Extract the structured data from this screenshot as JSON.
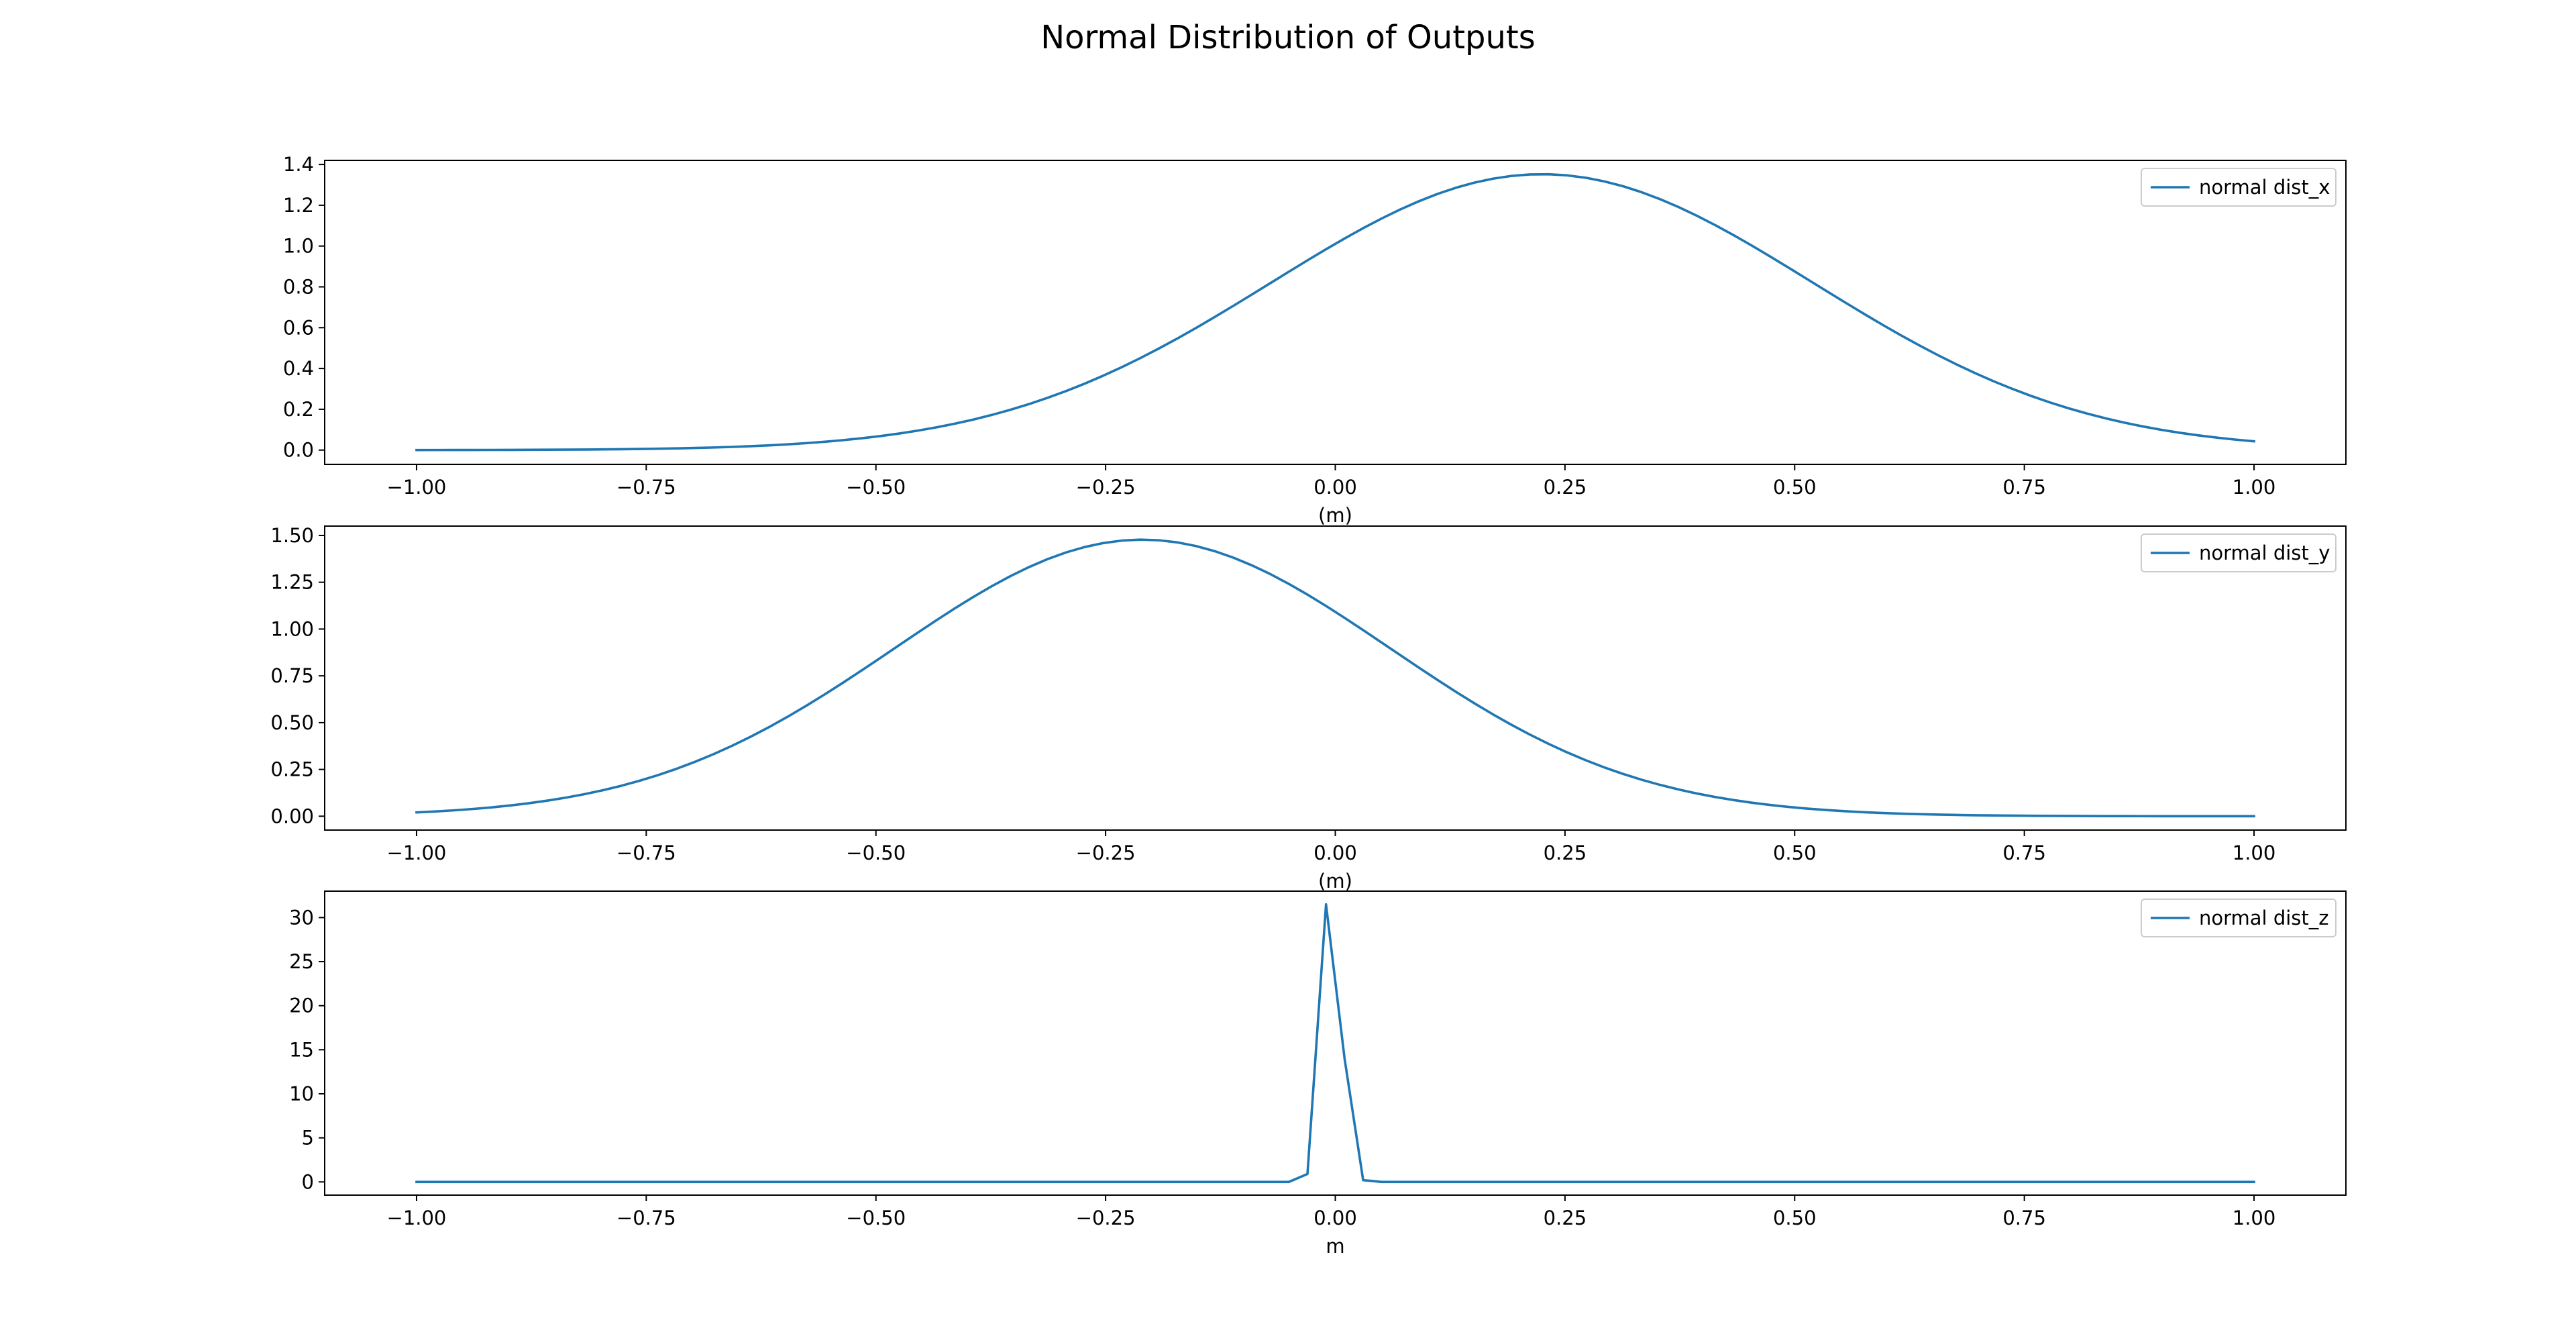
{
  "figure": {
    "title": "Normal Distribution of Outputs"
  },
  "colors": {
    "series": "#1f77b4",
    "axes": "#000000",
    "legend_border": "#cccccc"
  },
  "chart_data": [
    {
      "type": "line",
      "xlabel": "(m)",
      "ylabel": "",
      "xlim": [
        -1.1,
        1.1
      ],
      "ylim": [
        -0.07,
        1.42
      ],
      "xticks": [
        -1.0,
        -0.75,
        -0.5,
        -0.25,
        0.0,
        0.25,
        0.5,
        0.75,
        1.0
      ],
      "xtick_labels": [
        "−1.00",
        "−0.75",
        "−0.50",
        "−0.25",
        "0.00",
        "0.25",
        "0.50",
        "0.75",
        "1.00"
      ],
      "yticks": [
        0.0,
        0.2,
        0.4,
        0.6,
        0.8,
        1.0,
        1.2,
        1.4
      ],
      "ytick_labels": [
        "0.0",
        "0.2",
        "0.4",
        "0.6",
        "0.8",
        "1.0",
        "1.2",
        "1.4"
      ],
      "legend": "top-right",
      "grid": false,
      "series": [
        {
          "name": "normal dist_x",
          "distribution": "normal",
          "mean": 0.225,
          "std": 0.295,
          "x_start": -1.0,
          "x_end": 1.0,
          "points": 100
        }
      ]
    },
    {
      "type": "line",
      "xlabel": "(m)",
      "ylabel": "",
      "xlim": [
        -1.1,
        1.1
      ],
      "ylim": [
        -0.074,
        1.55
      ],
      "xticks": [
        -1.0,
        -0.75,
        -0.5,
        -0.25,
        0.0,
        0.25,
        0.5,
        0.75,
        1.0
      ],
      "xtick_labels": [
        "−1.00",
        "−0.75",
        "−0.50",
        "−0.25",
        "0.00",
        "0.25",
        "0.50",
        "0.75",
        "1.00"
      ],
      "yticks": [
        0.0,
        0.25,
        0.5,
        0.75,
        1.0,
        1.25,
        1.5
      ],
      "ytick_labels": [
        "0.00",
        "0.25",
        "0.50",
        "0.75",
        "1.00",
        "1.25",
        "1.50"
      ],
      "legend": "top-right",
      "grid": false,
      "series": [
        {
          "name": "normal dist_y",
          "distribution": "normal",
          "mean": -0.21,
          "std": 0.27,
          "x_start": -1.0,
          "x_end": 1.0,
          "points": 100
        }
      ]
    },
    {
      "type": "line",
      "xlabel": "m",
      "ylabel": "",
      "xlim": [
        -1.1,
        1.1
      ],
      "ylim": [
        -1.5,
        33.0
      ],
      "xticks": [
        -1.0,
        -0.75,
        -0.5,
        -0.25,
        0.0,
        0.25,
        0.5,
        0.75,
        1.0
      ],
      "xtick_labels": [
        "−1.00",
        "−0.75",
        "−0.50",
        "−0.25",
        "0.00",
        "0.25",
        "0.50",
        "0.75",
        "1.00"
      ],
      "yticks": [
        0,
        5,
        10,
        15,
        20,
        25,
        30
      ],
      "ytick_labels": [
        "0",
        "5",
        "10",
        "15",
        "20",
        "25",
        "30"
      ],
      "legend": "top-right",
      "grid": false,
      "series": [
        {
          "name": "normal dist_z",
          "x": [
            -1.0,
            -0.0505,
            -0.0303,
            -0.0101,
            0.0101,
            0.0303,
            0.0505,
            1.0
          ],
          "y": [
            0.0,
            0.0,
            0.9,
            31.5,
            14.0,
            0.2,
            0.0,
            0.0
          ]
        }
      ]
    }
  ]
}
